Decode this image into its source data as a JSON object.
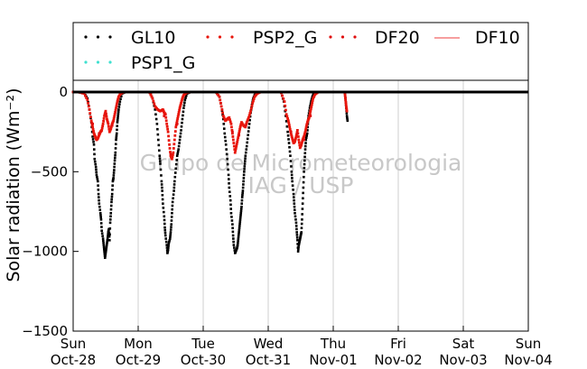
{
  "chart_data": {
    "type": "scatter",
    "title": "",
    "xlabel": "",
    "ylabel": "Solar radiation (Wm⁻²)",
    "ylim": [
      -1500,
      60
    ],
    "xlim": [
      0,
      7
    ],
    "grid": "vertical lines at day ticks",
    "legend_placement": "top",
    "x_ticks": [
      {
        "x": 0,
        "day": "Sun",
        "date": "Oct-28"
      },
      {
        "x": 1,
        "day": "Mon",
        "date": "Oct-29"
      },
      {
        "x": 2,
        "day": "Tue",
        "date": "Oct-30"
      },
      {
        "x": 3,
        "day": "Wed",
        "date": "Oct-31"
      },
      {
        "x": 4,
        "day": "Thu",
        "date": "Nov-01"
      },
      {
        "x": 5,
        "day": "Fri",
        "date": "Nov-02"
      },
      {
        "x": 6,
        "day": "Sat",
        "date": "Nov-03"
      },
      {
        "x": 7,
        "day": "Sun",
        "date": "Nov-04"
      }
    ],
    "y_ticks": [
      0,
      -500,
      -1000,
      -1500
    ],
    "y_tick_labels": [
      "0",
      "−500",
      "−1000",
      "−1500"
    ],
    "watermark": [
      "Grupo de Micrometeorologia",
      "IAG / USP"
    ],
    "series": [
      {
        "name": "GL10",
        "color": "#000000",
        "marker": "dot",
        "points": [
          [
            0.0,
            0
          ],
          [
            0.1,
            -2
          ],
          [
            0.17,
            -8
          ],
          [
            0.22,
            -40
          ],
          [
            0.25,
            -110
          ],
          [
            0.28,
            -190
          ],
          [
            0.3,
            -280
          ],
          [
            0.32,
            -330
          ],
          [
            0.33,
            -420
          ],
          [
            0.35,
            -470
          ],
          [
            0.36,
            -520
          ],
          [
            0.38,
            -560
          ],
          [
            0.39,
            -640
          ],
          [
            0.4,
            -700
          ],
          [
            0.42,
            -760
          ],
          [
            0.43,
            -800
          ],
          [
            0.44,
            -870
          ],
          [
            0.46,
            -920
          ],
          [
            0.47,
            -960
          ],
          [
            0.48,
            -1000
          ],
          [
            0.49,
            -1040
          ],
          [
            0.5,
            -1010
          ],
          [
            0.51,
            -980
          ],
          [
            0.52,
            -950
          ],
          [
            0.53,
            -920
          ],
          [
            0.54,
            -880
          ],
          [
            0.55,
            -860
          ],
          [
            0.56,
            -930
          ],
          [
            0.57,
            -820
          ],
          [
            0.58,
            -760
          ],
          [
            0.59,
            -690
          ],
          [
            0.6,
            -640
          ],
          [
            0.61,
            -560
          ],
          [
            0.62,
            -540
          ],
          [
            0.63,
            -490
          ],
          [
            0.64,
            -430
          ],
          [
            0.65,
            -380
          ],
          [
            0.66,
            -300
          ],
          [
            0.67,
            -260
          ],
          [
            0.68,
            -190
          ],
          [
            0.69,
            -150
          ],
          [
            0.7,
            -110
          ],
          [
            0.72,
            -60
          ],
          [
            0.75,
            -10
          ],
          [
            0.8,
            0
          ],
          [
            1.0,
            0
          ],
          [
            1.18,
            -5
          ],
          [
            1.22,
            -40
          ],
          [
            1.26,
            -110
          ],
          [
            1.29,
            -200
          ],
          [
            1.31,
            -300
          ],
          [
            1.33,
            -400
          ],
          [
            1.34,
            -450
          ],
          [
            1.36,
            -560
          ],
          [
            1.37,
            -620
          ],
          [
            1.38,
            -700
          ],
          [
            1.4,
            -780
          ],
          [
            1.41,
            -850
          ],
          [
            1.42,
            -900
          ],
          [
            1.44,
            -960
          ],
          [
            1.45,
            -1010
          ],
          [
            1.46,
            -990
          ],
          [
            1.47,
            -950
          ],
          [
            1.49,
            -920
          ],
          [
            1.5,
            -880
          ],
          [
            1.51,
            -830
          ],
          [
            1.52,
            -760
          ],
          [
            1.53,
            -690
          ],
          [
            1.55,
            -620
          ],
          [
            1.56,
            -560
          ],
          [
            1.58,
            -480
          ],
          [
            1.6,
            -400
          ],
          [
            1.62,
            -360
          ],
          [
            1.64,
            -300
          ],
          [
            1.66,
            -240
          ],
          [
            1.68,
            -170
          ],
          [
            1.7,
            -100
          ],
          [
            1.72,
            -50
          ],
          [
            1.75,
            -10
          ],
          [
            1.8,
            0
          ],
          [
            2.0,
            0
          ],
          [
            2.2,
            -2
          ],
          [
            2.25,
            -30
          ],
          [
            2.28,
            -90
          ],
          [
            2.31,
            -170
          ],
          [
            2.33,
            -260
          ],
          [
            2.35,
            -330
          ],
          [
            2.37,
            -420
          ],
          [
            2.39,
            -520
          ],
          [
            2.4,
            -600
          ],
          [
            2.42,
            -680
          ],
          [
            2.43,
            -760
          ],
          [
            2.45,
            -830
          ],
          [
            2.46,
            -900
          ],
          [
            2.47,
            -960
          ],
          [
            2.49,
            -1010
          ],
          [
            2.5,
            -1000
          ],
          [
            2.52,
            -980
          ],
          [
            2.53,
            -960
          ],
          [
            2.54,
            -920
          ],
          [
            2.55,
            -880
          ],
          [
            2.56,
            -840
          ],
          [
            2.57,
            -800
          ],
          [
            2.58,
            -760
          ],
          [
            2.59,
            -720
          ],
          [
            2.6,
            -660
          ],
          [
            2.61,
            -620
          ],
          [
            2.62,
            -560
          ],
          [
            2.63,
            -500
          ],
          [
            2.64,
            -450
          ],
          [
            2.65,
            -400
          ],
          [
            2.67,
            -340
          ],
          [
            2.69,
            -270
          ],
          [
            2.71,
            -200
          ],
          [
            2.73,
            -130
          ],
          [
            2.75,
            -80
          ],
          [
            2.77,
            -40
          ],
          [
            2.8,
            -10
          ],
          [
            2.85,
            0
          ],
          [
            3.0,
            0
          ],
          [
            3.2,
            -5
          ],
          [
            3.24,
            -60
          ],
          [
            3.27,
            -150
          ],
          [
            3.3,
            -250
          ],
          [
            3.32,
            -320
          ],
          [
            3.34,
            -400
          ],
          [
            3.36,
            -500
          ],
          [
            3.37,
            -560
          ],
          [
            3.39,
            -640
          ],
          [
            3.4,
            -700
          ],
          [
            3.41,
            -760
          ],
          [
            3.43,
            -820
          ],
          [
            3.44,
            -880
          ],
          [
            3.45,
            -930
          ],
          [
            3.46,
            -1000
          ],
          [
            3.47,
            -960
          ],
          [
            3.48,
            -940
          ],
          [
            3.49,
            -920
          ],
          [
            3.5,
            -900
          ],
          [
            3.51,
            -880
          ],
          [
            3.52,
            -800
          ],
          [
            3.53,
            -700
          ],
          [
            3.54,
            -600
          ],
          [
            3.55,
            -500
          ],
          [
            3.56,
            -430
          ],
          [
            3.57,
            -360
          ],
          [
            3.58,
            -300
          ],
          [
            3.6,
            -260
          ],
          [
            3.61,
            -200
          ],
          [
            3.62,
            -150
          ],
          [
            3.64,
            -100
          ],
          [
            3.66,
            -60
          ],
          [
            3.68,
            -30
          ],
          [
            3.7,
            -10
          ],
          [
            3.75,
            0
          ],
          [
            4.0,
            0
          ],
          [
            4.18,
            -10
          ],
          [
            4.19,
            -50
          ],
          [
            4.2,
            -100
          ],
          [
            4.21,
            -150
          ],
          [
            4.22,
            -180
          ]
        ]
      },
      {
        "name": "PSP2_G",
        "color": "#e8160c",
        "marker": "dot",
        "points": [
          [
            0.0,
            0
          ],
          [
            0.1,
            -2
          ],
          [
            0.17,
            -10
          ],
          [
            0.22,
            -50
          ],
          [
            0.25,
            -110
          ],
          [
            0.28,
            -180
          ],
          [
            0.3,
            -220
          ],
          [
            0.32,
            -260
          ],
          [
            0.34,
            -280
          ],
          [
            0.36,
            -300
          ],
          [
            0.38,
            -290
          ],
          [
            0.4,
            -270
          ],
          [
            0.42,
            -250
          ],
          [
            0.44,
            -240
          ],
          [
            0.46,
            -200
          ],
          [
            0.48,
            -150
          ],
          [
            0.5,
            -120
          ],
          [
            0.52,
            -170
          ],
          [
            0.54,
            -200
          ],
          [
            0.56,
            -250
          ],
          [
            0.58,
            -230
          ],
          [
            0.6,
            -200
          ],
          [
            0.62,
            -180
          ],
          [
            0.64,
            -140
          ],
          [
            0.66,
            -100
          ],
          [
            0.68,
            -60
          ],
          [
            0.7,
            -30
          ],
          [
            0.73,
            -10
          ],
          [
            0.78,
            0
          ],
          [
            1.0,
            0
          ],
          [
            1.18,
            -5
          ],
          [
            1.22,
            -40
          ],
          [
            1.26,
            -90
          ],
          [
            1.3,
            -110
          ],
          [
            1.34,
            -120
          ],
          [
            1.38,
            -110
          ],
          [
            1.4,
            -130
          ],
          [
            1.42,
            -140
          ],
          [
            1.44,
            -200
          ],
          [
            1.46,
            -250
          ],
          [
            1.48,
            -330
          ],
          [
            1.5,
            -400
          ],
          [
            1.52,
            -420
          ],
          [
            1.54,
            -380
          ],
          [
            1.56,
            -300
          ],
          [
            1.58,
            -220
          ],
          [
            1.6,
            -180
          ],
          [
            1.62,
            -140
          ],
          [
            1.64,
            -100
          ],
          [
            1.66,
            -70
          ],
          [
            1.68,
            -40
          ],
          [
            1.7,
            -20
          ],
          [
            1.74,
            -5
          ],
          [
            1.8,
            0
          ],
          [
            2.0,
            0
          ],
          [
            2.2,
            -2
          ],
          [
            2.25,
            -30
          ],
          [
            2.28,
            -90
          ],
          [
            2.31,
            -150
          ],
          [
            2.34,
            -180
          ],
          [
            2.37,
            -170
          ],
          [
            2.4,
            -160
          ],
          [
            2.43,
            -200
          ],
          [
            2.45,
            -260
          ],
          [
            2.47,
            -320
          ],
          [
            2.49,
            -380
          ],
          [
            2.51,
            -340
          ],
          [
            2.53,
            -300
          ],
          [
            2.55,
            -260
          ],
          [
            2.57,
            -220
          ],
          [
            2.59,
            -190
          ],
          [
            2.62,
            -210
          ],
          [
            2.65,
            -220
          ],
          [
            2.67,
            -190
          ],
          [
            2.7,
            -160
          ],
          [
            2.73,
            -120
          ],
          [
            2.76,
            -70
          ],
          [
            2.79,
            -30
          ],
          [
            2.83,
            -10
          ],
          [
            2.88,
            0
          ],
          [
            3.0,
            0
          ],
          [
            3.2,
            -5
          ],
          [
            3.25,
            -60
          ],
          [
            3.28,
            -140
          ],
          [
            3.31,
            -180
          ],
          [
            3.33,
            -220
          ],
          [
            3.35,
            -260
          ],
          [
            3.37,
            -290
          ],
          [
            3.39,
            -320
          ],
          [
            3.41,
            -310
          ],
          [
            3.43,
            -280
          ],
          [
            3.45,
            -240
          ],
          [
            3.47,
            -300
          ],
          [
            3.49,
            -350
          ],
          [
            3.51,
            -330
          ],
          [
            3.53,
            -300
          ],
          [
            3.55,
            -280
          ],
          [
            3.57,
            -250
          ],
          [
            3.59,
            -210
          ],
          [
            3.61,
            -180
          ],
          [
            3.63,
            -160
          ],
          [
            3.65,
            -120
          ],
          [
            3.67,
            -80
          ],
          [
            3.69,
            -40
          ],
          [
            3.72,
            -15
          ],
          [
            3.77,
            0
          ],
          [
            4.0,
            0
          ],
          [
            4.18,
            -10
          ],
          [
            4.19,
            -50
          ],
          [
            4.2,
            -90
          ],
          [
            4.21,
            -120
          ]
        ]
      },
      {
        "name": "DF20",
        "color": "#e01010",
        "marker": "dot",
        "points": [
          [
            0.3,
            -200
          ],
          [
            0.4,
            -260
          ],
          [
            0.5,
            -140
          ],
          [
            0.6,
            -210
          ],
          [
            1.4,
            -150
          ],
          [
            1.5,
            -390
          ],
          [
            1.6,
            -200
          ],
          [
            2.45,
            -250
          ],
          [
            2.55,
            -270
          ],
          [
            2.65,
            -210
          ],
          [
            3.35,
            -250
          ],
          [
            3.45,
            -260
          ],
          [
            3.55,
            -300
          ],
          [
            3.65,
            -150
          ]
        ]
      },
      {
        "name": "DF10",
        "color": "#f06464",
        "marker": "line",
        "points": []
      },
      {
        "name": "PSP1_G",
        "color": "#40e0d0",
        "marker": "dot",
        "points": []
      }
    ],
    "zero_line": {
      "y": 0,
      "color": "#000000"
    }
  }
}
